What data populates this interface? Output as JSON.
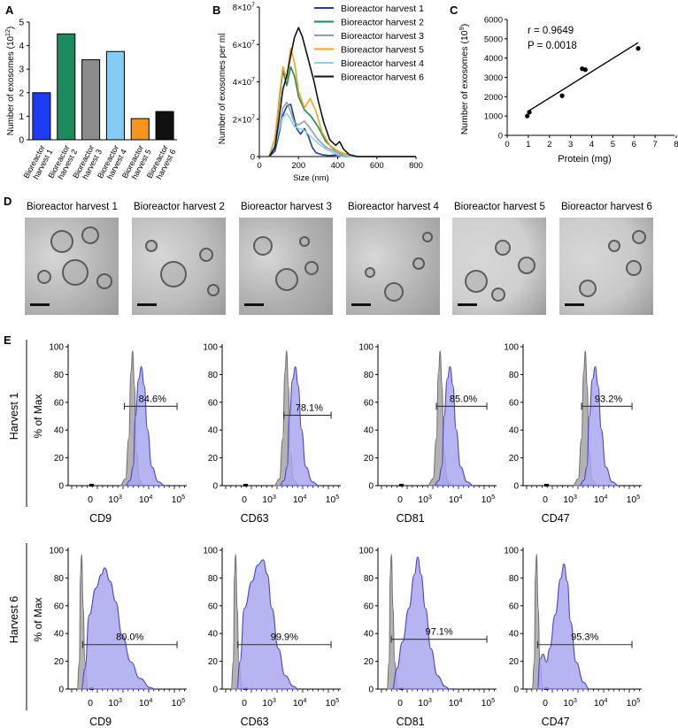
{
  "panel_letters": [
    "A",
    "B",
    "C",
    "D",
    "E"
  ],
  "chart_data": [
    {
      "panel": "A",
      "type": "bar",
      "ylabel": "Number of exosomes (10",
      "ylabel_sup": "12",
      "ylabel_tail": ")",
      "ylim": [
        0,
        5
      ],
      "yticks": [
        "0",
        "1",
        "2",
        "3",
        "4",
        "5"
      ],
      "categories": [
        [
          "Bioreactor",
          "harvest 1"
        ],
        [
          "Bioreactor",
          "harvest 2"
        ],
        [
          "Bioreactor",
          "harvest 3"
        ],
        [
          "Bioreactor",
          "harvest 4"
        ],
        [
          "Bioreactor",
          "harvest 5"
        ],
        [
          "Bioreactor",
          "harvest 6"
        ]
      ],
      "values": [
        2.0,
        4.5,
        3.4,
        3.75,
        0.9,
        1.2
      ],
      "colors": [
        "#1c3cf2",
        "#1b8a5c",
        "#8c8c8c",
        "#82cdf5",
        "#f7941d",
        "#111111"
      ]
    },
    {
      "panel": "B",
      "type": "line",
      "xlabel": "Size (nm)",
      "ylabel": "Number of exosomes per ml",
      "xlim": [
        0,
        800
      ],
      "ylim": [
        0,
        80000000.0
      ],
      "xticks": [
        "0",
        "200",
        "400",
        "600",
        "800"
      ],
      "yticks": [
        {
          "v": 0,
          "base": "0",
          "exp": ""
        },
        {
          "v": 20000000.0,
          "base": "2×10",
          "exp": "7"
        },
        {
          "v": 40000000.0,
          "base": "4×10",
          "exp": "7"
        },
        {
          "v": 60000000.0,
          "base": "6×10",
          "exp": "7"
        },
        {
          "v": 80000000.0,
          "base": "8×10",
          "exp": "7"
        }
      ],
      "legend_position": "top-right",
      "series": [
        {
          "name": "Bioreactor harvest 1",
          "color": "#1f3f9a",
          "x": [
            50,
            80,
            100,
            120,
            140,
            160,
            170,
            190,
            210,
            230,
            250,
            270,
            290,
            320,
            360,
            400,
            430,
            500,
            600,
            800
          ],
          "y": [
            0,
            3000000.0,
            12000000.0,
            22000000.0,
            27000000.0,
            28000000.0,
            24000000.0,
            15000000.0,
            12000000.0,
            15000000.0,
            11000000.0,
            5000000.0,
            2000000.0,
            1000000.0,
            500000.0,
            1000000.0,
            0,
            0,
            0,
            0
          ]
        },
        {
          "name": "Bioreactor harvest 2",
          "color": "#1b8a5c",
          "x": [
            50,
            80,
            100,
            120,
            140,
            160,
            180,
            200,
            230,
            260,
            300,
            340,
            380,
            420,
            460,
            500,
            800
          ],
          "y": [
            0,
            10000000.0,
            28000000.0,
            46000000.0,
            38000000.0,
            48000000.0,
            43000000.0,
            32000000.0,
            25000000.0,
            22000000.0,
            16000000.0,
            8000000.0,
            4000000.0,
            2000000.0,
            1000000.0,
            0,
            0
          ]
        },
        {
          "name": "Bioreactor harvest 3",
          "color": "#8da0a8",
          "x": [
            50,
            80,
            100,
            120,
            140,
            160,
            180,
            200,
            230,
            260,
            300,
            340,
            380,
            420,
            460,
            800
          ],
          "y": [
            0,
            5000000.0,
            15000000.0,
            26000000.0,
            29000000.0,
            24000000.0,
            18000000.0,
            17000000.0,
            19000000.0,
            15000000.0,
            9000000.0,
            5000000.0,
            3000000.0,
            1000000.0,
            0,
            0
          ]
        },
        {
          "name": "Bioreactor harvest 5",
          "color": "#f7a21d",
          "x": [
            50,
            80,
            100,
            120,
            140,
            160,
            180,
            200,
            230,
            260,
            290,
            320,
            360,
            400,
            450,
            500,
            800
          ],
          "y": [
            0,
            10000000.0,
            30000000.0,
            48000000.0,
            42000000.0,
            58000000.0,
            50000000.0,
            35000000.0,
            26000000.0,
            31000000.0,
            24000000.0,
            13000000.0,
            6000000.0,
            3000000.0,
            1000000.0,
            0,
            0
          ]
        },
        {
          "name": "Bioreactor harvest 4",
          "color": "#8fcfee",
          "x": [
            50,
            80,
            100,
            120,
            140,
            160,
            180,
            200,
            230,
            260,
            300,
            340,
            380,
            420,
            800
          ],
          "y": [
            0,
            6000000.0,
            14000000.0,
            21000000.0,
            23000000.0,
            20000000.0,
            16000000.0,
            15000000.0,
            14000000.0,
            11000000.0,
            7000000.0,
            4000000.0,
            2000000.0,
            0,
            0
          ]
        },
        {
          "name": "Bioreactor harvest 6",
          "color": "#111111",
          "x": [
            50,
            80,
            100,
            120,
            140,
            160,
            180,
            200,
            220,
            240,
            260,
            280,
            300,
            330,
            360,
            390,
            410,
            430,
            460,
            500,
            800
          ],
          "y": [
            0,
            5000000.0,
            20000000.0,
            36000000.0,
            43000000.0,
            54000000.0,
            64000000.0,
            69000000.0,
            64000000.0,
            56000000.0,
            48000000.0,
            40000000.0,
            30000000.0,
            18000000.0,
            9000000.0,
            6000000.0,
            8000000.0,
            4000000.0,
            1000000.0,
            0,
            0
          ]
        }
      ],
      "legend_order": [
        "Bioreactor harvest 1",
        "Bioreactor harvest 2",
        "Bioreactor harvest 3",
        "Bioreactor harvest 5",
        "Bioreactor harvest 4",
        "Bioreactor harvest 6"
      ]
    },
    {
      "panel": "C",
      "type": "scatter",
      "xlabel": "Protein (mg)",
      "ylabel": "Number of exosomes (10",
      "ylabel_sup": "9",
      "ylabel_tail": ")",
      "xlim": [
        0,
        8
      ],
      "ylim": [
        0,
        6000
      ],
      "xticks": [
        "0",
        "1",
        "2",
        "3",
        "4",
        "5",
        "6",
        "7",
        "8"
      ],
      "yticks": [
        "0",
        "1000",
        "2000",
        "3000",
        "4000",
        "5000",
        "6000"
      ],
      "annotation_r": "r = 0.9649",
      "annotation_p": "P = 0.0018",
      "points": [
        {
          "x": 0.95,
          "y": 1000
        },
        {
          "x": 1.05,
          "y": 1200
        },
        {
          "x": 2.6,
          "y": 2050
        },
        {
          "x": 3.55,
          "y": 3450
        },
        {
          "x": 3.7,
          "y": 3400
        },
        {
          "x": 6.2,
          "y": 4500
        }
      ],
      "fit": {
        "x": [
          1.0,
          6.2
        ],
        "y": [
          1250,
          4800
        ]
      }
    },
    {
      "panel": "E",
      "type": "area",
      "row_labels": [
        "Harvest 1",
        "Harvest 6"
      ],
      "ylabel": "% of Max",
      "yticks": [
        "0",
        "20",
        "40",
        "60",
        "80",
        "100"
      ],
      "xticks": [
        {
          "base": "0",
          "exp": ""
        },
        {
          "base": "10",
          "exp": "3"
        },
        {
          "base": "10",
          "exp": "4"
        },
        {
          "base": "10",
          "exp": "5"
        }
      ],
      "markers": [
        "CD9",
        "CD63",
        "CD81",
        "CD47"
      ],
      "gate_labels": [
        [
          "84.6%",
          "78.1%",
          "85.0%",
          "93.2%"
        ],
        [
          "80.0%",
          "99.9%",
          "97.1%",
          "95.3%"
        ]
      ],
      "colors": {
        "isotype_fill": "#b2b2b2",
        "isotype_line": "#6f6f6f",
        "stain_fill": "#a9a8ef",
        "stain_line": "#4a47c9"
      }
    }
  ],
  "em_panel": {
    "titles": [
      "Bioreactor harvest 1",
      "Bioreactor harvest 2",
      "Bioreactor harvest 3",
      "Bioreactor harvest 4",
      "Bioreactor harvest 5",
      "Bioreactor harvest 6"
    ]
  }
}
